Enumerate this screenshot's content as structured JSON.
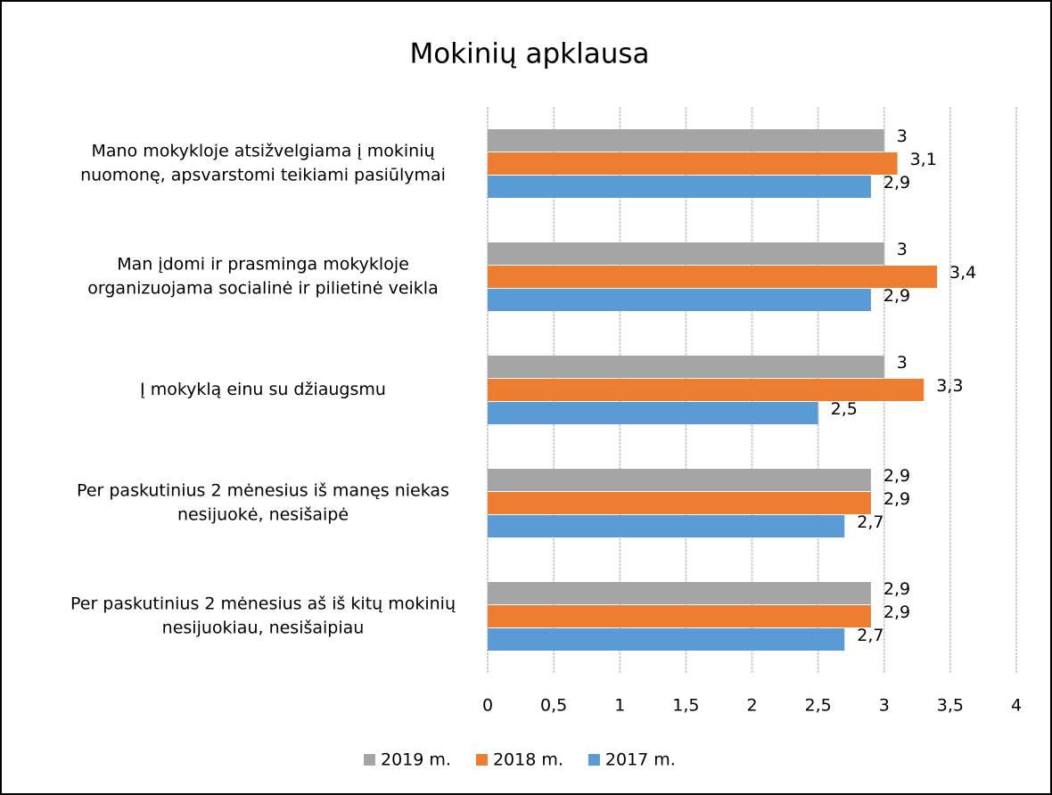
{
  "chart_data": {
    "type": "bar",
    "orientation": "horizontal",
    "title": "Mokinių apklausa",
    "categories": [
      [
        "Mano mokykloje atsižvelgiama  į mokinių",
        "nuomonę, apsvarstomi teikiami pasiūlymai"
      ],
      [
        "Man įdomi ir prasminga mokykloje",
        "organizuojama socialinė ir pilietinė veikla"
      ],
      [
        "Į mokyklą einu su džiaugsmu"
      ],
      [
        "Per paskutinius 2 mėnesius iš manęs niekas",
        "nesijuokė, nesišaipė"
      ],
      [
        "Per paskutinius 2 mėnesius aš iš kitų mokinių",
        "nesijuokiau, nesišaipiau"
      ]
    ],
    "series": [
      {
        "name": "2019 m.",
        "color": "#a5a5a5",
        "values": [
          3,
          3,
          3,
          2.9,
          2.9
        ],
        "value_labels": [
          "3",
          "3",
          "3",
          "2,9",
          "2,9"
        ]
      },
      {
        "name": "2018 m.",
        "color": "#ed7d31",
        "values": [
          3.1,
          3.4,
          3.3,
          2.9,
          2.9
        ],
        "value_labels": [
          "3,1",
          "3,4",
          "3,3",
          "2,9",
          "2,9"
        ]
      },
      {
        "name": "2017 m.",
        "color": "#5b9bd5",
        "values": [
          2.9,
          2.9,
          2.5,
          2.7,
          2.7
        ],
        "value_labels": [
          "2,9",
          "2,9",
          "2,5",
          "2,7",
          "2,7"
        ]
      }
    ],
    "xlim": [
      0,
      4
    ],
    "xticks": [
      0,
      {
        "value": 0.5,
        "label": "0,5"
      },
      1,
      {
        "value": 1.5,
        "label": "1,5"
      },
      2,
      {
        "value": 2.5,
        "label": "2,5"
      },
      3,
      {
        "value": 3.5,
        "label": "3,5"
      },
      4
    ],
    "grid": true,
    "legend": "bottom"
  }
}
